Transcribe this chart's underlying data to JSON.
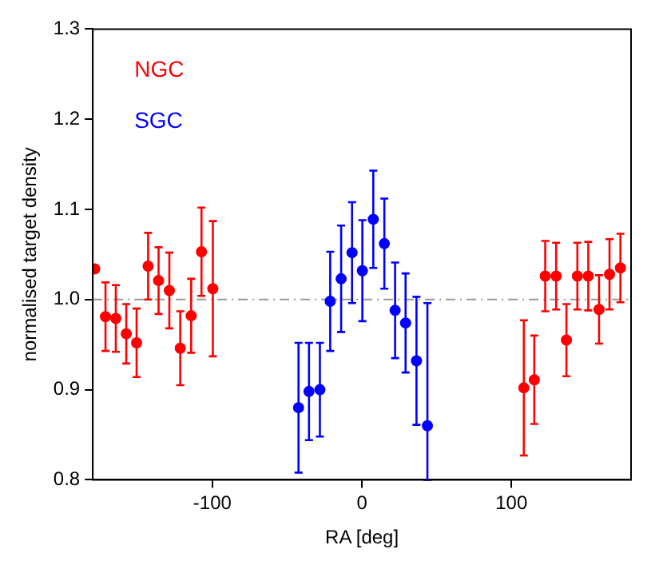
{
  "chart_data": {
    "type": "scatter",
    "xlabel": "RA [deg]",
    "ylabel": "normalised target density",
    "xlim": [
      -180,
      180
    ],
    "ylim": [
      0.8,
      1.3
    ],
    "xticks": [
      -100,
      0,
      100
    ],
    "yticks": [
      0.8,
      0.9,
      {
        "value": 1,
        "label": "1.0"
      },
      1.1,
      1.2,
      1.3
    ],
    "grid": false,
    "legend": "top left",
    "marker": "circle",
    "ref_lines": [
      {
        "axis": "y",
        "value": 1.0,
        "color": "#999999",
        "line_style": "dashdot"
      }
    ],
    "series": [
      {
        "name": "NGC",
        "color": "#ff0000",
        "x": [
          -178.7,
          -171.5,
          -164.6,
          -157.6,
          -150.7,
          -143,
          -136,
          -128.8,
          -121.5,
          -114.2,
          -107.3,
          -99.7,
          108.3,
          115.3,
          122.6,
          129.9,
          136.8,
          144.1,
          151.4,
          158.6,
          165.6,
          172.9
        ],
        "values": [
          1.034,
          0.981,
          0.979,
          0.962,
          0.952,
          1.037,
          1.021,
          1.01,
          0.946,
          0.982,
          1.053,
          1.012,
          0.902,
          0.911,
          1.026,
          1.026,
          0.955,
          1.026,
          1.026,
          0.989,
          1.028,
          1.035
        ],
        "errors": [
          null,
          0.038,
          0.037,
          0.033,
          0.038,
          0.037,
          0.037,
          0.042,
          0.041,
          0.041,
          0.049,
          0.075,
          0.075,
          0.049,
          0.039,
          0.037,
          0.04,
          0.037,
          0.038,
          0.038,
          0.039,
          0.038
        ]
      },
      {
        "name": "SGC",
        "color": "#0000ff",
        "x": [
          -42.4,
          -35.4,
          -28.1,
          -21.2,
          -13.9,
          -6.6,
          0.3,
          7.6,
          15,
          22.2,
          29.2,
          36.5,
          43.8
        ],
        "values": [
          0.88,
          0.898,
          0.9,
          0.998,
          1.023,
          1.052,
          1.032,
          1.089,
          1.062,
          0.988,
          0.974,
          0.932,
          0.86
        ],
        "errors": [
          0.072,
          0.054,
          0.052,
          0.055,
          0.059,
          0.056,
          0.056,
          0.054,
          0.05,
          0.053,
          0.055,
          0.071,
          [
            0.8,
            0.996
          ]
        ]
      }
    ]
  }
}
